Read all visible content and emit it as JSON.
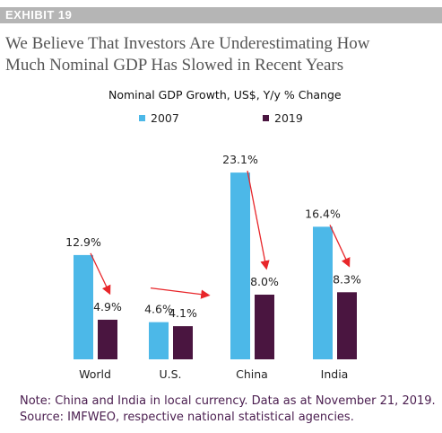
{
  "exhibit": "EXHIBIT 19",
  "headline": {
    "line1": "We Believe That Investors Are Underestimating How",
    "line2": "Much Nominal GDP Has Slowed in Recent Years"
  },
  "colors": {
    "series_2007": "#4cb8e8",
    "series_2019": "#4a1540",
    "arrow": "#e8262a",
    "note_text": "#4a1d4f"
  },
  "chart_data": {
    "type": "bar",
    "title": "Nominal GDP Growth, US$, Y/y % Change",
    "categories": [
      "World",
      "U.S.",
      "China",
      "India"
    ],
    "series": [
      {
        "name": "2007",
        "values": [
          12.9,
          4.6,
          23.1,
          16.4
        ],
        "labels": [
          "12.9%",
          "4.6%",
          "23.1%",
          "16.4%"
        ]
      },
      {
        "name": "2019",
        "values": [
          4.9,
          4.1,
          8.0,
          8.3
        ],
        "labels": [
          "4.9%",
          "4.1%",
          "8.0%",
          "8.3%"
        ]
      }
    ],
    "ylim": [
      0,
      25
    ],
    "grid": false,
    "legend": "top-left",
    "annotations": "red arrows from each 2007 bar to the corresponding 2019 bar"
  },
  "notes": {
    "line1": "Note: China and India in local currency. Data as at November 21, 2019.",
    "line2": "Source: IMFWEO, respective national statistical agencies."
  }
}
